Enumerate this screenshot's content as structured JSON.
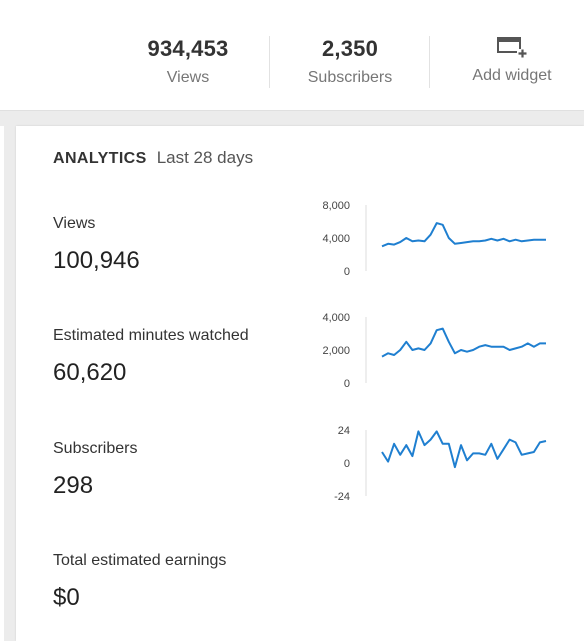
{
  "summary": {
    "views": {
      "value": "934,453",
      "label": "Views"
    },
    "subscribers": {
      "value": "2,350",
      "label": "Subscribers"
    },
    "widget": {
      "label": "Add widget"
    }
  },
  "analytics": {
    "title": "ANALYTICS",
    "period": "Last 28 days",
    "metrics": [
      {
        "label": "Views",
        "value": "100,946"
      },
      {
        "label": "Estimated minutes watched",
        "value": "60,620"
      },
      {
        "label": "Subscribers",
        "value": "298"
      },
      {
        "label": "Total estimated earnings",
        "value": "$0"
      }
    ]
  },
  "colors": {
    "line": "#1f7fd0",
    "axis": "#dcdcdc"
  },
  "chart_data": [
    {
      "type": "line",
      "ylim": [
        0,
        8000
      ],
      "yticks": [
        "8,000",
        "4,000",
        "0"
      ],
      "values": [
        3000,
        3300,
        3200,
        3500,
        4000,
        3600,
        3700,
        3600,
        4400,
        5800,
        5600,
        4000,
        3300,
        3400,
        3500,
        3600,
        3600,
        3700,
        3900,
        3700,
        3900,
        3600,
        3800,
        3600,
        3700,
        3800,
        3800,
        3800
      ]
    },
    {
      "type": "line",
      "ylim": [
        0,
        4000
      ],
      "yticks": [
        "4,000",
        "2,000",
        "0"
      ],
      "values": [
        1600,
        1800,
        1700,
        2000,
        2500,
        2000,
        2100,
        2000,
        2400,
        3200,
        3300,
        2500,
        1800,
        2000,
        1900,
        2000,
        2200,
        2300,
        2200,
        2200,
        2200,
        2000,
        2100,
        2200,
        2400,
        2200,
        2400,
        2400
      ]
    },
    {
      "type": "line",
      "ylim": [
        -24,
        24
      ],
      "yticks": [
        "24",
        "0",
        "-24"
      ],
      "values": [
        8,
        1,
        14,
        6,
        13,
        5,
        23,
        13,
        17,
        23,
        14,
        14,
        -3,
        13,
        2,
        7,
        7,
        6,
        14,
        3,
        10,
        17,
        15,
        6,
        7,
        8,
        15,
        16
      ]
    }
  ]
}
